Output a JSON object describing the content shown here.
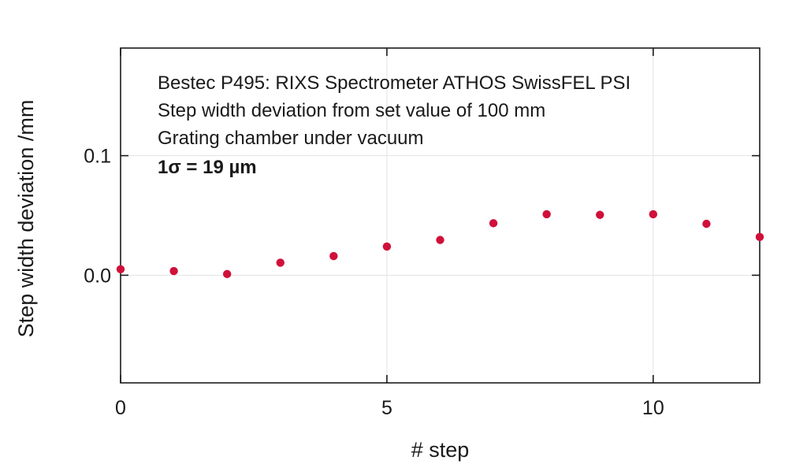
{
  "chart_data": {
    "type": "scatter",
    "title": "",
    "xlabel": "# step",
    "ylabel": "Step width deviation /mm",
    "xlim": [
      0,
      12
    ],
    "ylim": [
      -0.09,
      0.19
    ],
    "x_ticks": [
      0,
      5,
      10
    ],
    "x_tick_labels": [
      "0",
      "5",
      "10"
    ],
    "y_ticks": [
      0.0,
      0.1
    ],
    "y_tick_labels": [
      "0.0",
      "0.1"
    ],
    "grid": true,
    "marker_color": "#d0103a",
    "series": [
      {
        "x": [
          0,
          1,
          2,
          3,
          4,
          5,
          6,
          7,
          8,
          9,
          10,
          11,
          12
        ],
        "y": [
          0.005,
          0.0035,
          0.001,
          0.0105,
          0.016,
          0.024,
          0.0295,
          0.0435,
          0.051,
          0.0505,
          0.051,
          0.043,
          0.032
        ]
      }
    ],
    "annotations": [
      "Bestec P495: RIXS Spectrometer ATHOS SwissFEL PSI",
      "Step width deviation from set value of 100 mm",
      "Grating chamber under vacuum",
      "1σ = 19 µm"
    ]
  }
}
